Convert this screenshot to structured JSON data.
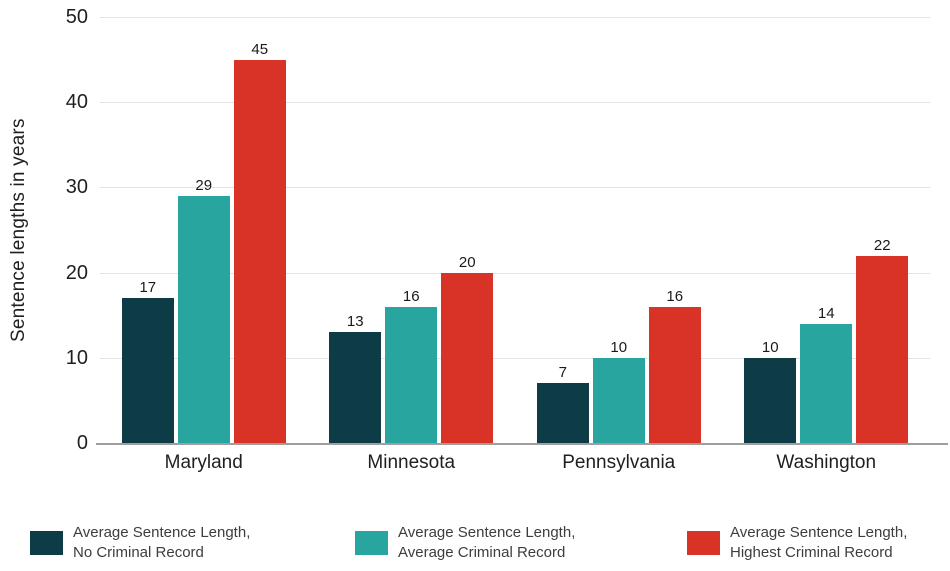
{
  "chart_data": {
    "type": "bar",
    "title": "",
    "ylabel": "Sentence lengths in years",
    "xlabel": "",
    "ylim": [
      0,
      50
    ],
    "yticks": [
      0,
      10,
      20,
      30,
      40,
      50
    ],
    "grid": true,
    "value_labels": true,
    "legend_position": "bottom",
    "categories": [
      "Maryland",
      "Minnesota",
      "Pennsylvania",
      "Washington"
    ],
    "series": [
      {
        "name": "Average Sentence Length, No Criminal Record",
        "label_lines": [
          "Average Sentence Length,",
          "No Criminal Record"
        ],
        "color": "#0d3c46",
        "values": [
          17,
          13,
          7,
          10
        ]
      },
      {
        "name": "Average Sentence Length, Average Criminal Record",
        "label_lines": [
          "Average Sentence Length,",
          "Average Criminal Record"
        ],
        "color": "#29a5a0",
        "values": [
          29,
          16,
          10,
          14
        ]
      },
      {
        "name": "Average Sentence Length, Highest Criminal Record",
        "label_lines": [
          "Average Sentence Length,",
          "Highest Criminal Record"
        ],
        "color": "#d93327",
        "values": [
          45,
          20,
          16,
          22
        ]
      }
    ]
  },
  "colors": {
    "gridline": "#e3e3e3",
    "axis_line": "#9e9e9e",
    "tick_text": "#1f1f1f",
    "category_text": "#1f1f1f",
    "value_label_text": "#1a1a1a",
    "legend_text": "#3d3d3d",
    "background": "#ffffff"
  }
}
